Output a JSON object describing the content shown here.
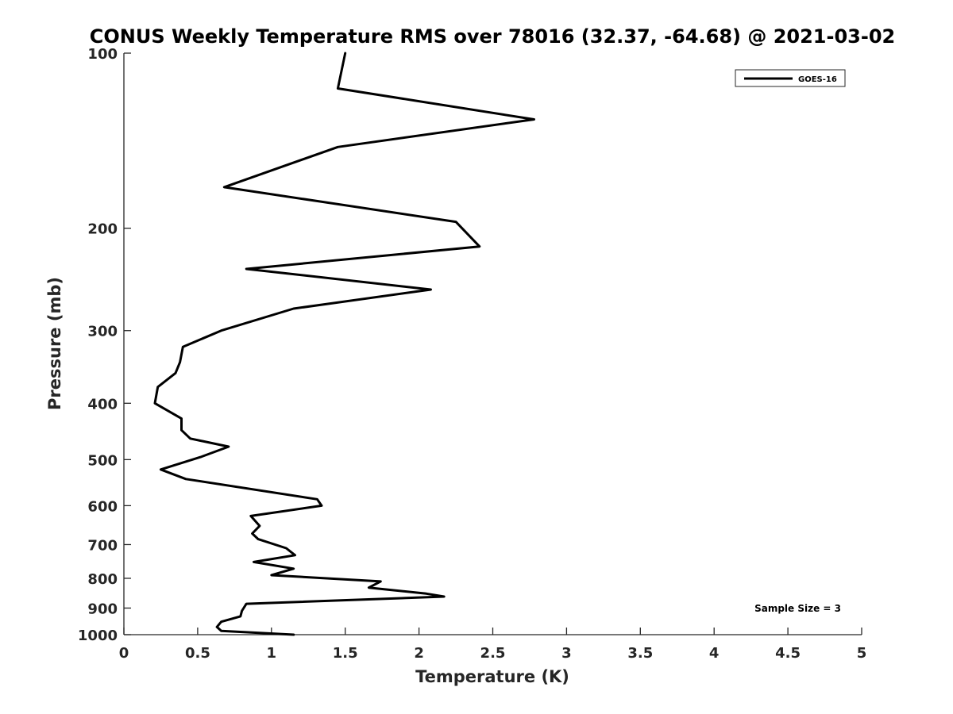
{
  "chart_data": {
    "type": "line",
    "title": "CONUS Weekly Temperature RMS over 78016 (32.37, -64.68) @ 2021-03-02",
    "xlabel": "Temperature (K)",
    "ylabel": "Pressure (mb)",
    "xlim": [
      0,
      5
    ],
    "ylim": [
      1000,
      100
    ],
    "y_scale": "log",
    "y_reversed": true,
    "x_ticks": [
      "0",
      "0.5",
      "1",
      "1.5",
      "2",
      "2.5",
      "3",
      "3.5",
      "4",
      "4.5",
      "5"
    ],
    "y_ticks": [
      "100",
      "200",
      "300",
      "400",
      "500",
      "600",
      "700",
      "800",
      "900",
      "1000"
    ],
    "grid": false,
    "legend": {
      "position": "top-right",
      "entries": [
        "GOES-16"
      ]
    },
    "annotation": "Sample Size = 3",
    "series": [
      {
        "name": "GOES-16",
        "color": "#000000",
        "points": [
          [
            1.5,
            100
          ],
          [
            1.45,
            115
          ],
          [
            2.78,
            130
          ],
          [
            1.45,
            145
          ],
          [
            0.68,
            170
          ],
          [
            2.25,
            195
          ],
          [
            2.41,
            215
          ],
          [
            0.83,
            235
          ],
          [
            2.08,
            255
          ],
          [
            1.15,
            275
          ],
          [
            0.66,
            300
          ],
          [
            0.4,
            320
          ],
          [
            0.38,
            340
          ],
          [
            0.35,
            355
          ],
          [
            0.23,
            375
          ],
          [
            0.21,
            400
          ],
          [
            0.39,
            425
          ],
          [
            0.39,
            445
          ],
          [
            0.45,
            460
          ],
          [
            0.71,
            475
          ],
          [
            0.52,
            495
          ],
          [
            0.25,
            520
          ],
          [
            0.42,
            540
          ],
          [
            1.31,
            585
          ],
          [
            1.34,
            600
          ],
          [
            0.86,
            625
          ],
          [
            0.92,
            650
          ],
          [
            0.87,
            670
          ],
          [
            0.91,
            685
          ],
          [
            1.1,
            710
          ],
          [
            1.16,
            730
          ],
          [
            0.88,
            750
          ],
          [
            1.15,
            770
          ],
          [
            1.0,
            790
          ],
          [
            1.74,
            810
          ],
          [
            1.66,
            830
          ],
          [
            2.05,
            850
          ],
          [
            2.17,
            860
          ],
          [
            0.83,
            885
          ],
          [
            0.8,
            910
          ],
          [
            0.79,
            930
          ],
          [
            0.66,
            950
          ],
          [
            0.63,
            970
          ],
          [
            0.66,
            985
          ],
          [
            1.15,
            1000
          ]
        ]
      }
    ]
  }
}
